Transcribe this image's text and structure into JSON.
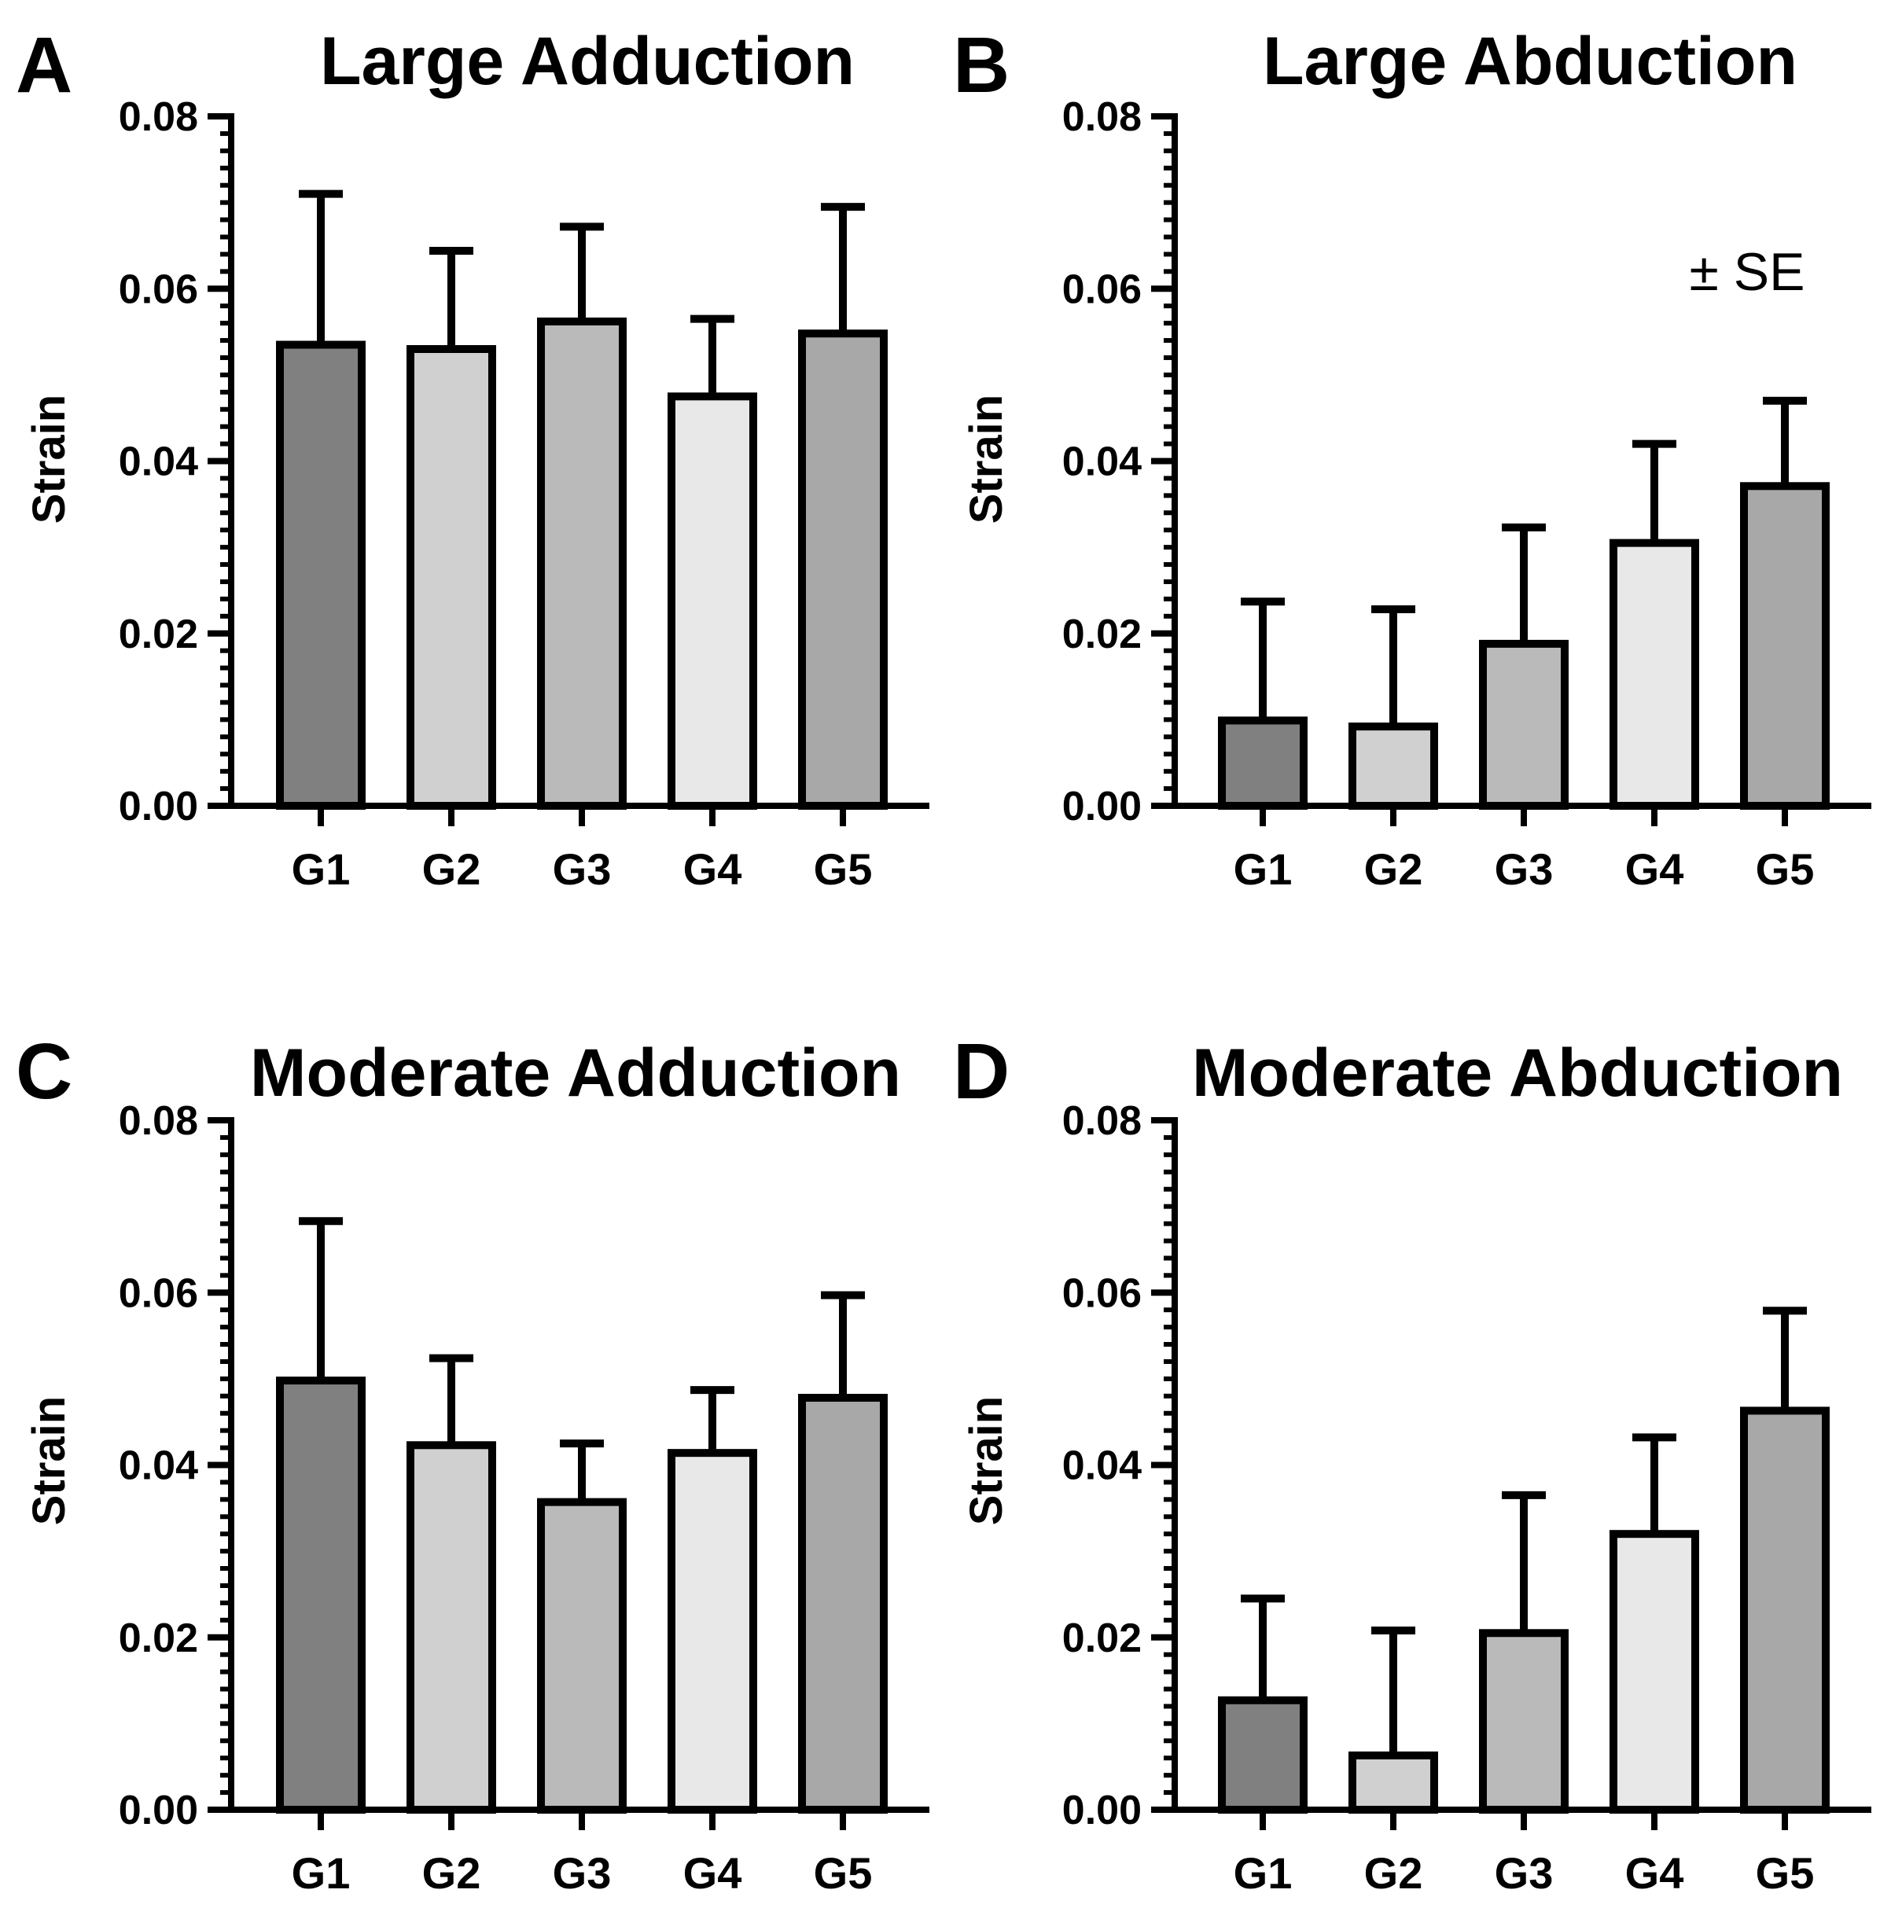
{
  "chart_data": [
    {
      "panel": "A",
      "type": "bar",
      "title": "Large Adduction",
      "xlabel": "",
      "ylabel": "Strain",
      "ylim": [
        0,
        0.08
      ],
      "yticks": [
        "0.00",
        "0.02",
        "0.04",
        "0.06",
        "0.08"
      ],
      "categories": [
        "G1",
        "G2",
        "G3",
        "G4",
        "G5"
      ],
      "values": [
        0.0535,
        0.053,
        0.0562,
        0.0475,
        0.0548
      ],
      "error_upper": [
        0.071,
        0.0644,
        0.0672,
        0.0565,
        0.0695
      ],
      "colors": [
        "#808080",
        "#d0d0d0",
        "#bababa",
        "#e8e8e8",
        "#a8a8a8"
      ],
      "annotation": ""
    },
    {
      "panel": "B",
      "type": "bar",
      "title": "Large Abduction",
      "xlabel": "",
      "ylabel": "Strain",
      "ylim": [
        0,
        0.08
      ],
      "yticks": [
        "0.00",
        "0.02",
        "0.04",
        "0.06",
        "0.08"
      ],
      "categories": [
        "G1",
        "G2",
        "G3",
        "G4",
        "G5"
      ],
      "values": [
        0.0099,
        0.0092,
        0.0188,
        0.0305,
        0.0371
      ],
      "error_upper": [
        0.0237,
        0.0228,
        0.0323,
        0.042,
        0.047
      ],
      "colors": [
        "#808080",
        "#d0d0d0",
        "#bababa",
        "#e8e8e8",
        "#a8a8a8"
      ],
      "annotation": "± SE"
    },
    {
      "panel": "C",
      "type": "bar",
      "title": "Moderate Adduction",
      "xlabel": "",
      "ylabel": "Strain",
      "ylim": [
        0,
        0.08
      ],
      "yticks": [
        "0.00",
        "0.02",
        "0.04",
        "0.06",
        "0.08"
      ],
      "categories": [
        "G1",
        "G2",
        "G3",
        "G4",
        "G5"
      ],
      "values": [
        0.0498,
        0.0423,
        0.0357,
        0.0414,
        0.0478
      ],
      "error_upper": [
        0.0683,
        0.0524,
        0.0425,
        0.0487,
        0.0597
      ],
      "colors": [
        "#808080",
        "#d0d0d0",
        "#bababa",
        "#e8e8e8",
        "#a8a8a8"
      ],
      "annotation": ""
    },
    {
      "panel": "D",
      "type": "bar",
      "title": "Moderate Abduction",
      "xlabel": "",
      "ylabel": "Strain",
      "ylim": [
        0,
        0.08
      ],
      "yticks": [
        "0.00",
        "0.02",
        "0.04",
        "0.06",
        "0.08"
      ],
      "categories": [
        "G1",
        "G2",
        "G3",
        "G4",
        "G5"
      ],
      "values": [
        0.0127,
        0.0063,
        0.0205,
        0.032,
        0.0463
      ],
      "error_upper": [
        0.0245,
        0.0208,
        0.0365,
        0.0432,
        0.0579
      ],
      "colors": [
        "#808080",
        "#d0d0d0",
        "#bababa",
        "#e8e8e8",
        "#a8a8a8"
      ],
      "annotation": ""
    }
  ]
}
